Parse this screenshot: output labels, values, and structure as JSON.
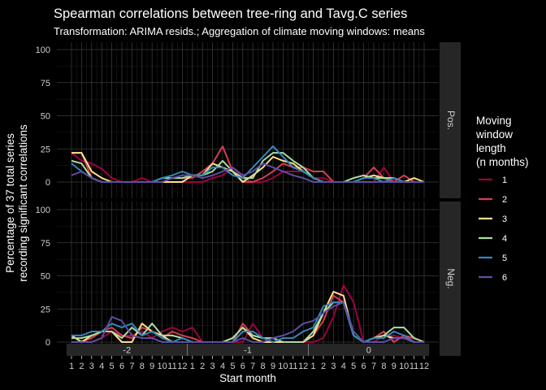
{
  "chart_data": {
    "type": "line",
    "title": "Spearman correlations between tree-ring and Tavg.C series",
    "subtitle": "Transformation: ARIMA resids.; Aggregation of climate moving windows: means",
    "xlabel": "Start month",
    "ylabel_line1": "Percentage of 37 total series",
    "ylabel_line2": "recording significant correlations",
    "ylim": [
      0,
      100
    ],
    "yticks": [
      "0",
      "25",
      "50",
      "75",
      "100"
    ],
    "xticks": [
      "1",
      "2",
      "3",
      "4",
      "5",
      "6",
      "7",
      "8",
      "9",
      "10",
      "11",
      "12",
      "1",
      "2",
      "3",
      "4",
      "5",
      "6",
      "7",
      "8",
      "9",
      "10",
      "11",
      "12",
      "1",
      "2",
      "3",
      "4",
      "5",
      "6",
      "7",
      "8",
      "9",
      "10",
      "11",
      "12"
    ],
    "year_groups": [
      "-2",
      "-1",
      "0"
    ],
    "facets": [
      "Pos.",
      "Neg."
    ],
    "legend": {
      "title_lines": [
        "Moving",
        "window",
        "length",
        "(n months)"
      ],
      "position": "right"
    },
    "grid": true,
    "series": [
      {
        "name": "1",
        "color": "#9e0142",
        "pos": [
          22,
          16,
          14,
          10,
          3,
          0,
          0,
          3,
          0,
          0,
          0,
          0,
          0,
          0,
          3,
          5,
          11,
          3,
          0,
          0,
          3,
          8,
          8,
          8,
          3,
          3,
          0,
          0,
          0,
          0,
          0,
          11,
          0,
          0,
          0,
          0
        ],
        "neg": [
          0,
          0,
          0,
          3,
          8,
          5,
          5,
          8,
          3,
          8,
          11,
          8,
          11,
          0,
          0,
          0,
          0,
          0,
          14,
          3,
          0,
          0,
          0,
          0,
          0,
          3,
          19,
          43,
          30,
          0,
          0,
          5,
          5,
          3,
          3,
          0
        ]
      },
      {
        "name": "2",
        "color": "#d53e4f",
        "pos": [
          22,
          22,
          3,
          0,
          0,
          0,
          0,
          0,
          0,
          0,
          3,
          3,
          3,
          8,
          14,
          27,
          8,
          0,
          0,
          3,
          8,
          14,
          11,
          11,
          8,
          8,
          0,
          0,
          0,
          3,
          11,
          3,
          0,
          5,
          0,
          0
        ],
        "neg": [
          0,
          0,
          3,
          8,
          11,
          5,
          3,
          11,
          8,
          3,
          8,
          5,
          3,
          0,
          0,
          0,
          0,
          14,
          5,
          3,
          0,
          0,
          0,
          0,
          5,
          16,
          35,
          30,
          5,
          0,
          3,
          8,
          0,
          5,
          3,
          0
        ]
      },
      {
        "name": "3",
        "color": "#fee08b",
        "pos": [
          22,
          22,
          8,
          3,
          0,
          0,
          0,
          0,
          0,
          0,
          0,
          0,
          5,
          5,
          14,
          11,
          8,
          0,
          5,
          11,
          19,
          16,
          14,
          8,
          3,
          0,
          0,
          0,
          0,
          3,
          5,
          3,
          3,
          0,
          3,
          0
        ],
        "neg": [
          5,
          0,
          5,
          8,
          8,
          0,
          0,
          14,
          8,
          5,
          0,
          0,
          0,
          0,
          0,
          0,
          3,
          11,
          3,
          0,
          0,
          0,
          0,
          0,
          5,
          22,
          38,
          35,
          5,
          0,
          3,
          5,
          3,
          3,
          0,
          0
        ]
      },
      {
        "name": "4",
        "color": "#abdda4",
        "pos": [
          16,
          14,
          3,
          0,
          0,
          0,
          0,
          0,
          0,
          3,
          3,
          3,
          5,
          5,
          8,
          16,
          8,
          3,
          3,
          16,
          22,
          22,
          16,
          11,
          3,
          0,
          0,
          0,
          3,
          5,
          3,
          3,
          3,
          0,
          0,
          0
        ],
        "neg": [
          3,
          3,
          5,
          8,
          8,
          3,
          11,
          5,
          14,
          5,
          5,
          3,
          0,
          0,
          0,
          0,
          3,
          11,
          5,
          3,
          3,
          0,
          0,
          0,
          8,
          22,
          30,
          30,
          5,
          0,
          3,
          5,
          11,
          11,
          3,
          0
        ]
      },
      {
        "name": "5",
        "color": "#3288bd",
        "pos": [
          14,
          8,
          3,
          0,
          0,
          0,
          0,
          0,
          0,
          3,
          5,
          8,
          5,
          5,
          11,
          11,
          5,
          3,
          11,
          19,
          27,
          19,
          11,
          8,
          3,
          0,
          0,
          0,
          0,
          3,
          3,
          0,
          3,
          0,
          0,
          0
        ],
        "neg": [
          5,
          5,
          8,
          8,
          14,
          11,
          14,
          5,
          8,
          3,
          0,
          3,
          0,
          0,
          0,
          0,
          0,
          8,
          8,
          3,
          0,
          3,
          3,
          8,
          11,
          27,
          30,
          30,
          5,
          0,
          3,
          3,
          8,
          5,
          0,
          0
        ]
      },
      {
        "name": "6",
        "color": "#5e4fa2",
        "pos": [
          5,
          8,
          3,
          0,
          0,
          0,
          0,
          0,
          0,
          0,
          3,
          5,
          5,
          3,
          5,
          8,
          11,
          5,
          8,
          14,
          11,
          8,
          5,
          3,
          0,
          0,
          0,
          0,
          0,
          0,
          0,
          0,
          0,
          0,
          0,
          0
        ],
        "neg": [
          0,
          0,
          0,
          3,
          19,
          16,
          5,
          3,
          3,
          0,
          0,
          0,
          0,
          0,
          0,
          0,
          0,
          3,
          0,
          0,
          3,
          5,
          8,
          14,
          16,
          22,
          27,
          30,
          8,
          0,
          0,
          0,
          3,
          3,
          0,
          0
        ]
      }
    ]
  }
}
